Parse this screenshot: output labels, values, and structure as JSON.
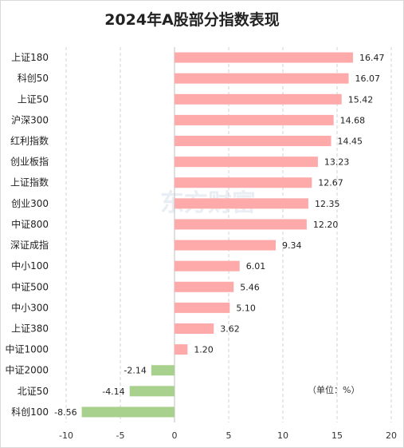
{
  "chart_data": {
    "type": "bar",
    "orientation": "horizontal",
    "title": "2024年A股部分指数表现",
    "unit_note": "（单位：%）",
    "watermark": "东方财富",
    "categories": [
      "上证180",
      "科创50",
      "上证50",
      "沪深300",
      "红利指数",
      "创业板指",
      "上证指数",
      "创业300",
      "中证800",
      "深证成指",
      "中小100",
      "中证500",
      "中小300",
      "上证380",
      "中证1000",
      "中证2000",
      "北证50",
      "科创100"
    ],
    "values": [
      16.47,
      16.07,
      15.42,
      14.68,
      14.45,
      13.23,
      12.67,
      12.35,
      12.2,
      9.34,
      6.01,
      5.46,
      5.1,
      3.62,
      1.2,
      -2.14,
      -4.14,
      -8.56
    ],
    "value_labels": [
      "16.47",
      "16.07",
      "15.42",
      "14.68",
      "14.45",
      "13.23",
      "12.67",
      "12.35",
      "12.20",
      "9.34",
      "6.01",
      "5.46",
      "5.10",
      "3.62",
      "1.20",
      "-2.14",
      "-4.14",
      "-8.56"
    ],
    "xlim": [
      -10,
      20
    ],
    "xticks": [
      -10,
      -5,
      0,
      5,
      10,
      15,
      20
    ],
    "xtick_labels": [
      "-10",
      "-5",
      "0",
      "5",
      "10",
      "15",
      "20"
    ],
    "grid": "vertical dashed",
    "colors": {
      "positive": "#ffaaaa",
      "negative": "#a9d18e",
      "grid": "#d0d0d0",
      "axis": "#bfbfbf"
    }
  }
}
